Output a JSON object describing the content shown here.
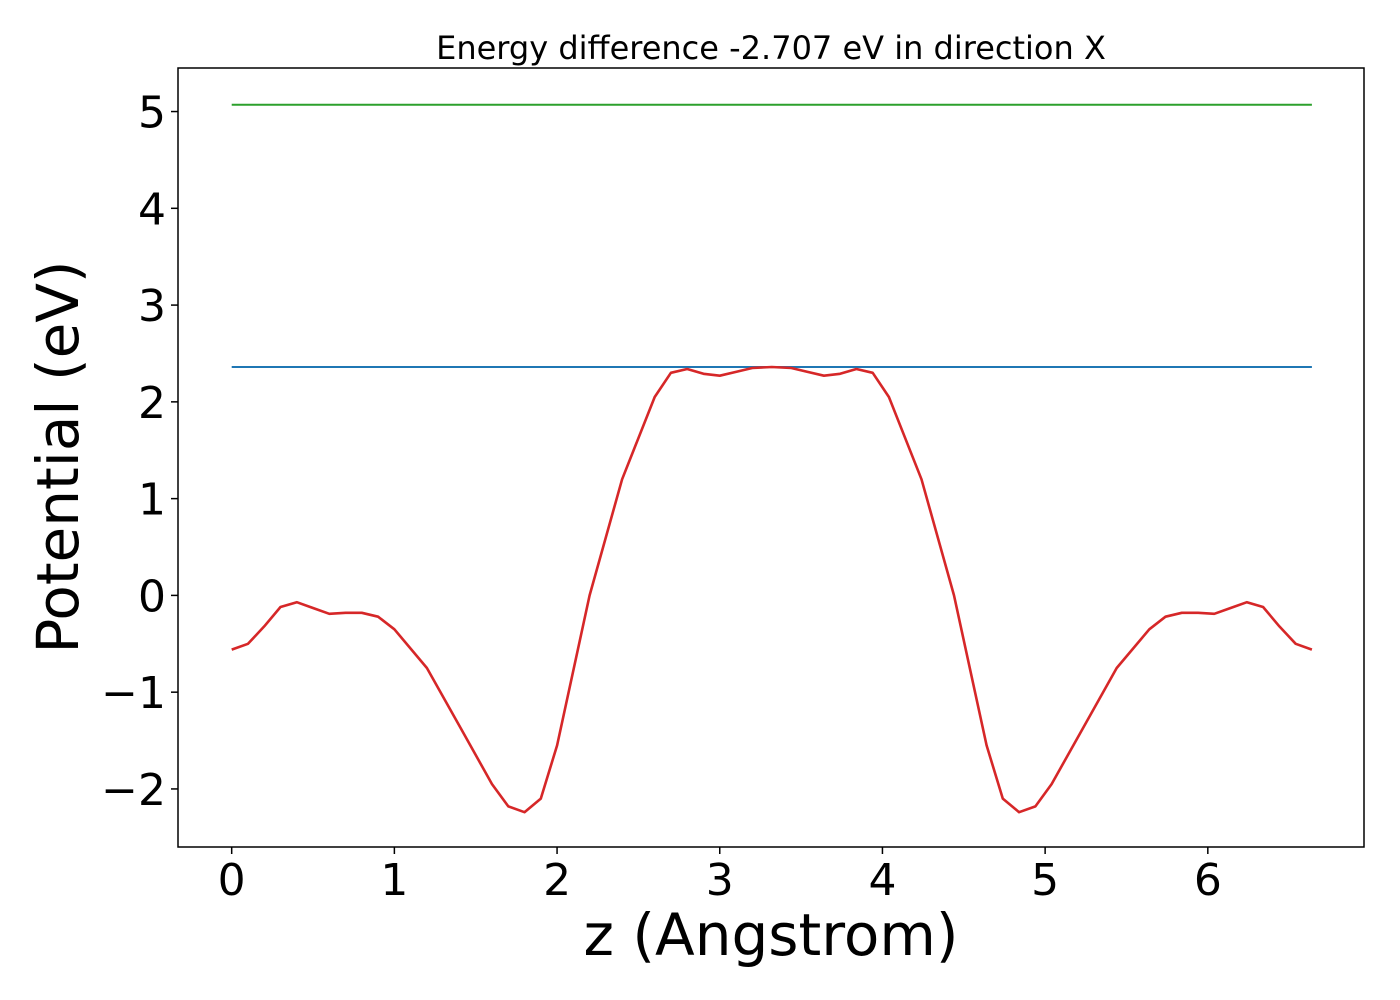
{
  "chart_data": {
    "type": "line",
    "title": "Energy difference -2.707 eV in direction X",
    "xlabel": "z (Angstrom)",
    "ylabel": "Potential (eV)",
    "xlim": [
      -0.33,
      6.96
    ],
    "ylim": [
      -2.6,
      5.45
    ],
    "xticks": [
      0,
      1,
      2,
      3,
      4,
      5,
      6
    ],
    "yticks": [
      -2,
      -1,
      0,
      1,
      2,
      3,
      4,
      5
    ],
    "grid": false,
    "legend": false,
    "series": [
      {
        "color": "#2ca02c",
        "style": "horizontal",
        "x": [
          0,
          6.64
        ],
        "y": [
          5.07,
          5.07
        ]
      },
      {
        "color": "#1f77b4",
        "style": "horizontal",
        "x": [
          0,
          6.64
        ],
        "y": [
          2.36,
          2.36
        ]
      },
      {
        "color": "#d62728",
        "style": "curve",
        "x": [
          0.0,
          0.1,
          0.2,
          0.3,
          0.4,
          0.5,
          0.6,
          0.7,
          0.8,
          0.9,
          1.0,
          1.2,
          1.4,
          1.6,
          1.7,
          1.8,
          1.9,
          2.0,
          2.2,
          2.4,
          2.6,
          2.7,
          2.8,
          2.9,
          3.0,
          3.1,
          3.2,
          3.32,
          3.44,
          3.54,
          3.64,
          3.74,
          3.84,
          3.94,
          4.04,
          4.24,
          4.44,
          4.64,
          4.74,
          4.84,
          4.94,
          5.04,
          5.24,
          5.44,
          5.64,
          5.74,
          5.84,
          5.94,
          6.04,
          6.14,
          6.24,
          6.34,
          6.44,
          6.54,
          6.64
        ],
        "y": [
          -0.56,
          -0.5,
          -0.32,
          -0.12,
          -0.07,
          -0.13,
          -0.19,
          -0.18,
          -0.18,
          -0.22,
          -0.35,
          -0.75,
          -1.35,
          -1.95,
          -2.18,
          -2.24,
          -2.1,
          -1.55,
          0.0,
          1.2,
          2.05,
          2.3,
          2.34,
          2.29,
          2.27,
          2.31,
          2.35,
          2.36,
          2.35,
          2.31,
          2.27,
          2.29,
          2.34,
          2.3,
          2.05,
          1.2,
          0.0,
          -1.55,
          -2.1,
          -2.24,
          -2.18,
          -1.95,
          -1.35,
          -0.75,
          -0.35,
          -0.22,
          -0.18,
          -0.18,
          -0.19,
          -0.13,
          -0.07,
          -0.12,
          -0.32,
          -0.5,
          -0.56
        ]
      }
    ]
  }
}
